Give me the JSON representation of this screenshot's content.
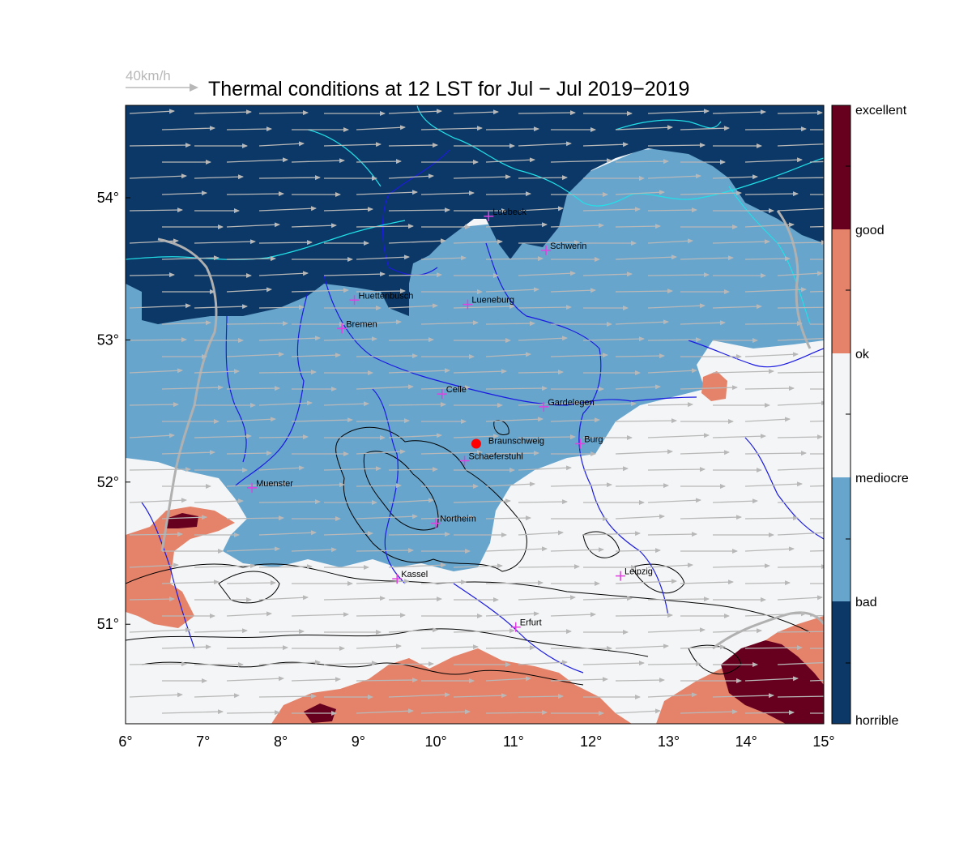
{
  "title": "Thermal conditions at 12 LST for Jul − Jul  2019−2019",
  "wind_reference": {
    "label": "40km/h"
  },
  "colors": {
    "horrible": "#0b3866",
    "bad": "#67a5cd",
    "mediocre": "#f4f5f6",
    "ok": "#f4f5f6",
    "good": "#e4826a",
    "excellent": "#67001f",
    "wind_arrow": "#b8b8b8",
    "rivers": "#1a1ae0",
    "coast": "#22e0e8",
    "terrain_contours": "#000000",
    "city_marker": "#e040e0",
    "home_marker": "#ff0000"
  },
  "map": {
    "lon_range": [
      6,
      15
    ],
    "lat_range": [
      50.3,
      54.65
    ],
    "x_ticks": [
      "6°",
      "7°",
      "8°",
      "9°",
      "10°",
      "11°",
      "12°",
      "13°",
      "14°",
      "15°"
    ],
    "y_ticks": [
      "54°",
      "53°",
      "52°",
      "51°"
    ],
    "wind_direction": "westerly"
  },
  "legend": {
    "labels": [
      "excellent",
      "good",
      "ok",
      "mediocre",
      "bad",
      "horrible"
    ]
  },
  "home": {
    "name": "Braunschweig",
    "lon": 10.52,
    "lat": 52.27
  },
  "cities": [
    {
      "name": "Luebeck",
      "lon": 10.68,
      "lat": 53.87
    },
    {
      "name": "Schwerin",
      "lon": 11.42,
      "lat": 53.63
    },
    {
      "name": "Huettenbusch",
      "lon": 8.95,
      "lat": 53.28
    },
    {
      "name": "Lueneburg",
      "lon": 10.41,
      "lat": 53.25
    },
    {
      "name": "Bremen",
      "lon": 8.79,
      "lat": 53.08
    },
    {
      "name": "Celle",
      "lon": 10.08,
      "lat": 52.62
    },
    {
      "name": "Gardelegen",
      "lon": 11.39,
      "lat": 52.53
    },
    {
      "name": "Muenster",
      "lon": 7.63,
      "lat": 51.96
    },
    {
      "name": "Burg",
      "lon": 11.86,
      "lat": 52.27
    },
    {
      "name": "Schaeferstuhl",
      "lon": 10.37,
      "lat": 52.15
    },
    {
      "name": "Northeim",
      "lon": 10.0,
      "lat": 51.71
    },
    {
      "name": "Kassel",
      "lon": 9.5,
      "lat": 51.32
    },
    {
      "name": "Leipzig",
      "lon": 12.38,
      "lat": 51.34
    },
    {
      "name": "Erfurt",
      "lon": 11.03,
      "lat": 50.98
    }
  ]
}
